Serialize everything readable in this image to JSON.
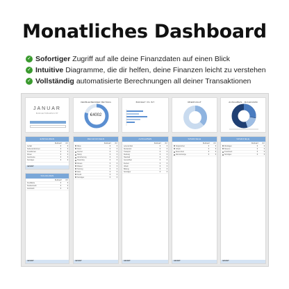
{
  "title": "Monatliches Dashboard",
  "features": [
    {
      "bold": "Sofortiger",
      "text": "Zugriff auf alle deine Finanzdaten auf einen Blick"
    },
    {
      "bold": "Intuitive",
      "text": "Diagramme, die dir helfen, deine Finanzen leicht zu verstehen"
    },
    {
      "bold": "Vollständig",
      "text": "automatisierte Berechnungen all deiner Transaktionen"
    }
  ],
  "colors": {
    "check": "#3a9a2e",
    "header": "#7aa7d8",
    "footer": "#d4e3f3",
    "ring": "#5b8fd1"
  },
  "sheet": {
    "month": "JANUAR",
    "month_sub": "BUDGETÜBERSICHT",
    "cards": [
      {
        "title": "VERBLEIBENDER BETRAG",
        "value": "€4002"
      },
      {
        "title": "BUDGET VS IST"
      },
      {
        "title": "ÜBERSICHT"
      },
      {
        "title": "AUSGABEN - DIAGRAMM"
      }
    ],
    "tables": [
      {
        "title": "EINNAHMEN",
        "cols": [
          "",
          "BUDGET",
          "IST"
        ],
        "rows": [
          "Gehalt",
          "Nebeneinkommen",
          "Investitionen",
          "Zinsen",
          "Geschenke",
          "Sonstiges"
        ],
        "total": "GESAMT"
      },
      {
        "title": "RECHNUNGEN",
        "cols": [
          "",
          "BUDGET",
          "IST"
        ],
        "rows": [
          "Miete",
          "Strom",
          "Internet",
          "Handy",
          "Versicherung",
          "Streaming",
          "Fitness",
          "Wasser",
          "Heizung",
          "Abos",
          "Kredit",
          "Sonstiges"
        ],
        "total": "GESAMT"
      },
      {
        "title": "AUSGABEN",
        "cols": [
          "",
          "BUDGET",
          "IST"
        ],
        "rows": [
          "Lebensmittel",
          "Restaurant",
          "Transport",
          "Kleidung",
          "Haushalt",
          "Gesundheit",
          "Freizeit",
          "Urlaub",
          "Bildung",
          "Sonstiges"
        ],
        "total": "GESAMT"
      },
      {
        "title": "SPARZIELE",
        "cols": [
          "",
          "BUDGET",
          "IST"
        ],
        "rows": [
          "Notgroschen",
          "Urlaub",
          "Neues Auto",
          "Altersvorsorge"
        ],
        "total": "GESAMT"
      },
      {
        "title": "SCHULDEN",
        "cols": [
          "",
          "BUDGET",
          "IST"
        ],
        "rows": [
          "Kreditkarte",
          "Studienkredit",
          "Autokredit"
        ],
        "total": "GESAMT"
      },
      {
        "title": "SPARZIELE",
        "cols": [
          "",
          "BUDGET",
          "IST"
        ],
        "rows": [
          "Rücklagen",
          "Reserve",
          "Investment",
          "Sonstiges"
        ],
        "total": "GESAMT"
      }
    ]
  }
}
